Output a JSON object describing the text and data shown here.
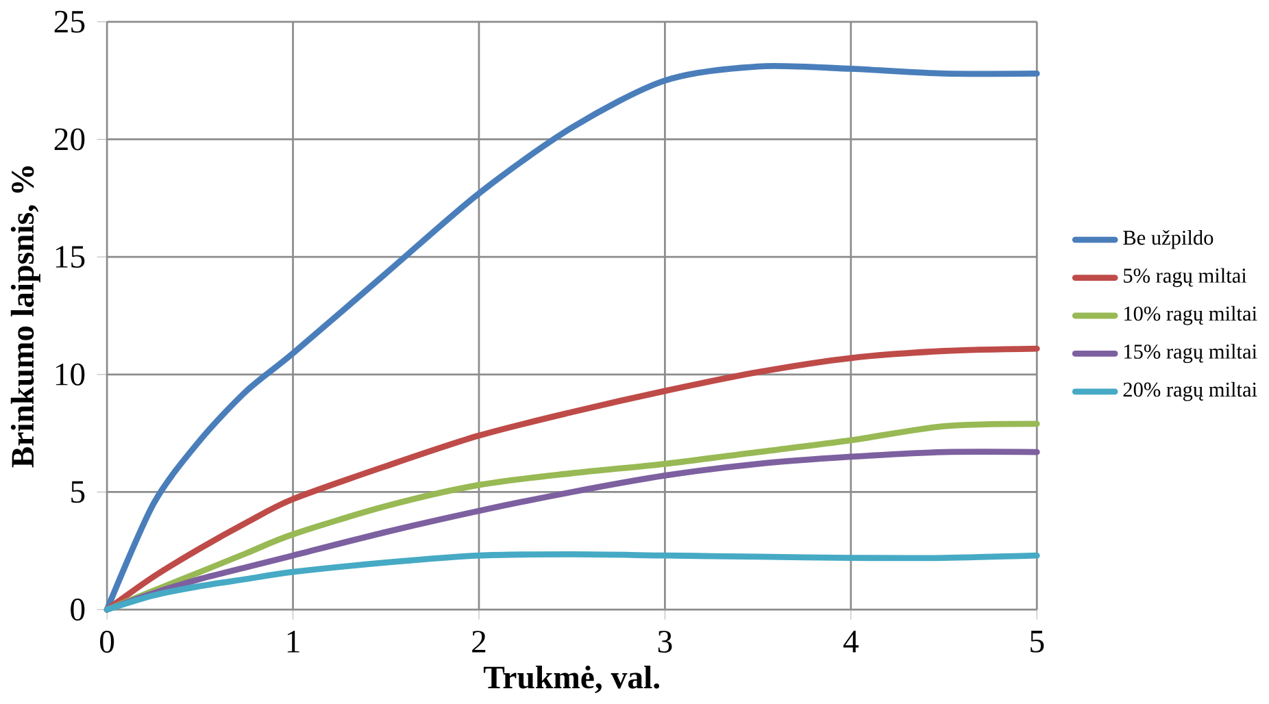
{
  "chart_data": {
    "type": "line",
    "xlabel": "Trukmė, val.",
    "ylabel": "Brinkumo laipsnis, %",
    "x": [
      0,
      0.25,
      0.5,
      0.75,
      1,
      1.5,
      2,
      2.5,
      3,
      3.5,
      4,
      4.5,
      5
    ],
    "series": [
      {
        "name": "Be užpildo",
        "color": "#4a7ebb",
        "values": [
          0,
          4.5,
          7.2,
          9.3,
          10.9,
          14.3,
          17.7,
          20.5,
          22.5,
          23.1,
          23.0,
          22.8,
          22.8
        ]
      },
      {
        "name": "5% ragų miltai",
        "color": "#be4b48",
        "values": [
          0,
          1.4,
          2.6,
          3.7,
          4.7,
          6.1,
          7.4,
          8.4,
          9.3,
          10.1,
          10.7,
          11.0,
          11.1
        ]
      },
      {
        "name": "10% ragų miltai",
        "color": "#98b954",
        "values": [
          0,
          0.8,
          1.6,
          2.4,
          3.2,
          4.4,
          5.3,
          5.8,
          6.2,
          6.7,
          7.2,
          7.8,
          7.9
        ]
      },
      {
        "name": "15% ragų miltai",
        "color": "#7d60a0",
        "values": [
          0,
          0.7,
          1.3,
          1.8,
          2.3,
          3.3,
          4.2,
          5.0,
          5.7,
          6.2,
          6.5,
          6.7,
          6.7
        ]
      },
      {
        "name": "20% ragų miltai",
        "color": "#46aac5",
        "values": [
          0,
          0.6,
          1.0,
          1.3,
          1.6,
          2.0,
          2.3,
          2.35,
          2.3,
          2.25,
          2.2,
          2.2,
          2.3
        ]
      }
    ],
    "xlim": [
      0,
      5
    ],
    "ylim": [
      0,
      25
    ],
    "xticks": [
      0,
      1,
      2,
      3,
      4,
      5
    ],
    "yticks": [
      0,
      5,
      10,
      15,
      20,
      25
    ],
    "grid": true,
    "legend": "right",
    "marker": "none",
    "line_style": "solid"
  }
}
